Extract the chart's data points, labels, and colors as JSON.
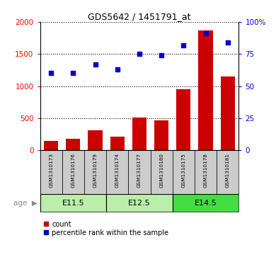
{
  "title": "GDS5642 / 1451791_at",
  "samples": [
    "GSM1310173",
    "GSM1310176",
    "GSM1310179",
    "GSM1310174",
    "GSM1310177",
    "GSM1310180",
    "GSM1310175",
    "GSM1310178",
    "GSM1310181"
  ],
  "counts": [
    150,
    175,
    315,
    215,
    510,
    465,
    950,
    1870,
    1155
  ],
  "percentiles": [
    60,
    60,
    67,
    63,
    75,
    74,
    82,
    91,
    84
  ],
  "bar_color": "#CC0000",
  "scatter_color": "#0000CC",
  "ylim_left": [
    0,
    2000
  ],
  "yticks_left": [
    0,
    500,
    1000,
    1500,
    2000
  ],
  "yticks_right": [
    0,
    25,
    50,
    75,
    100
  ],
  "ytick_labels_right": [
    "0",
    "25",
    "50",
    "75",
    "100%"
  ],
  "bg_color": "#FFFFFF",
  "sample_box_color": "#CCCCCC",
  "age_label": "age",
  "legend_count": "count",
  "legend_percentile": "percentile rank within the sample",
  "groups_info": [
    {
      "label": "E11.5",
      "start": 0,
      "end": 3,
      "color": "#BBEEAA"
    },
    {
      "label": "E12.5",
      "start": 3,
      "end": 6,
      "color": "#BBEEAA"
    },
    {
      "label": "E14.5",
      "start": 6,
      "end": 9,
      "color": "#44DD44"
    }
  ]
}
